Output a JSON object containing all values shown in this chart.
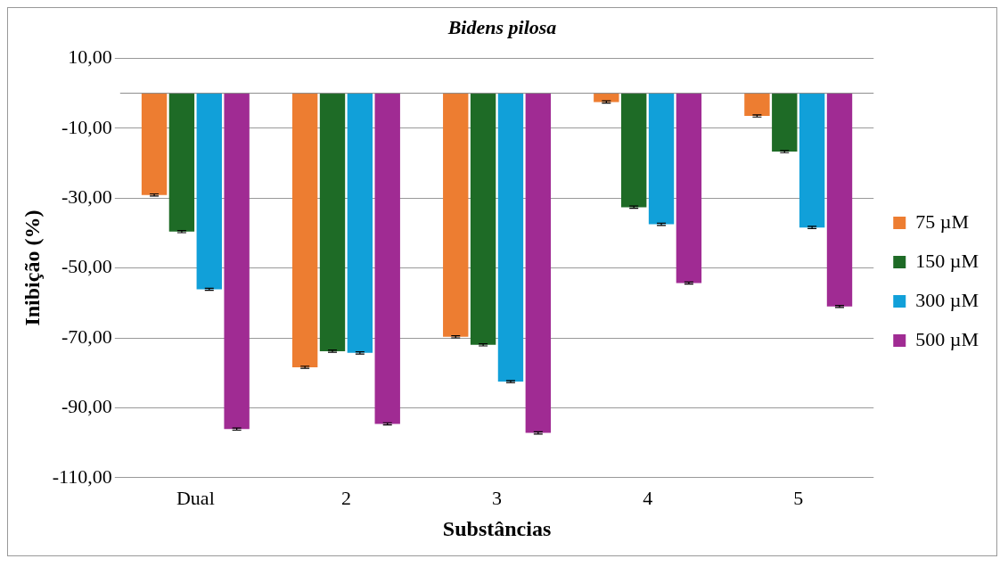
{
  "chart_data": {
    "type": "bar",
    "title": "Bidens pilosa",
    "xlabel": "Substâncias",
    "ylabel": "Inibição (%)",
    "categories": [
      "Dual",
      "2",
      "3",
      "4",
      "5"
    ],
    "series": [
      {
        "name": "75 µM",
        "color": "#ed7d31",
        "values": [
          -29.1,
          -78.4,
          -69.7,
          -2.5,
          -6.5
        ],
        "errors": [
          0.3,
          0.3,
          0.3,
          0.3,
          0.3
        ]
      },
      {
        "name": "150 µM",
        "color": "#1e6b26",
        "values": [
          -39.6,
          -73.8,
          -72.0,
          -32.6,
          -16.7
        ],
        "errors": [
          0.3,
          0.3,
          0.3,
          0.3,
          0.3
        ]
      },
      {
        "name": "300 µM",
        "color": "#11a0d9",
        "values": [
          -56.1,
          -74.3,
          -82.5,
          -37.5,
          -38.4
        ],
        "errors": [
          0.3,
          0.3,
          0.3,
          0.3,
          0.3
        ]
      },
      {
        "name": "500 µM",
        "color": "#a02b93",
        "values": [
          -96.1,
          -94.6,
          -97.2,
          -54.3,
          -61.0
        ],
        "errors": [
          0.3,
          0.3,
          0.3,
          0.3,
          0.3
        ]
      }
    ],
    "ylim": [
      -110,
      10
    ],
    "yticks": [
      {
        "value": 10,
        "label": "10,00"
      },
      {
        "value": -10,
        "label": "-10,00"
      },
      {
        "value": -30,
        "label": "-30,00"
      },
      {
        "value": -50,
        "label": "-50,00"
      },
      {
        "value": -70,
        "label": "-70,00"
      },
      {
        "value": -90,
        "label": "-90,00"
      },
      {
        "value": -110,
        "label": "-110,00"
      }
    ],
    "grid": "y",
    "legend": "right"
  }
}
